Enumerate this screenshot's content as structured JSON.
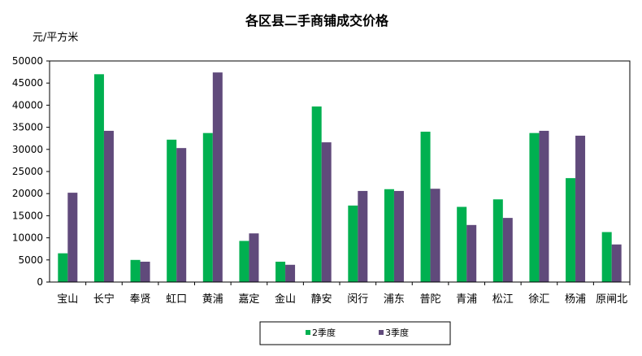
{
  "chart_data": {
    "type": "bar",
    "title": "各区县二手商铺成交价格",
    "ylabel": "元/平方米",
    "xlabel": "",
    "ylim": [
      0,
      50000
    ],
    "yticks": [
      0,
      5000,
      10000,
      15000,
      20000,
      25000,
      30000,
      35000,
      40000,
      45000,
      50000
    ],
    "grid": false,
    "legend_position": "bottom",
    "categories": [
      "宝山",
      "长宁",
      "奉贤",
      "虹口",
      "黄浦",
      "嘉定",
      "金山",
      "静安",
      "闵行",
      "浦东",
      "普陀",
      "青浦",
      "松江",
      "徐汇",
      "杨浦",
      "原闸北"
    ],
    "series": [
      {
        "name": "2季度",
        "color": "#00b050",
        "values": [
          6500,
          47000,
          5000,
          32200,
          33700,
          9300,
          4600,
          39700,
          17300,
          21000,
          34000,
          17000,
          18700,
          33700,
          23500,
          11300
        ]
      },
      {
        "name": "3季度",
        "color": "#604a7b",
        "values": [
          20200,
          34200,
          4600,
          30300,
          47400,
          11000,
          3900,
          31600,
          20600,
          20600,
          21100,
          12900,
          14500,
          34200,
          33100,
          8500
        ]
      }
    ]
  }
}
